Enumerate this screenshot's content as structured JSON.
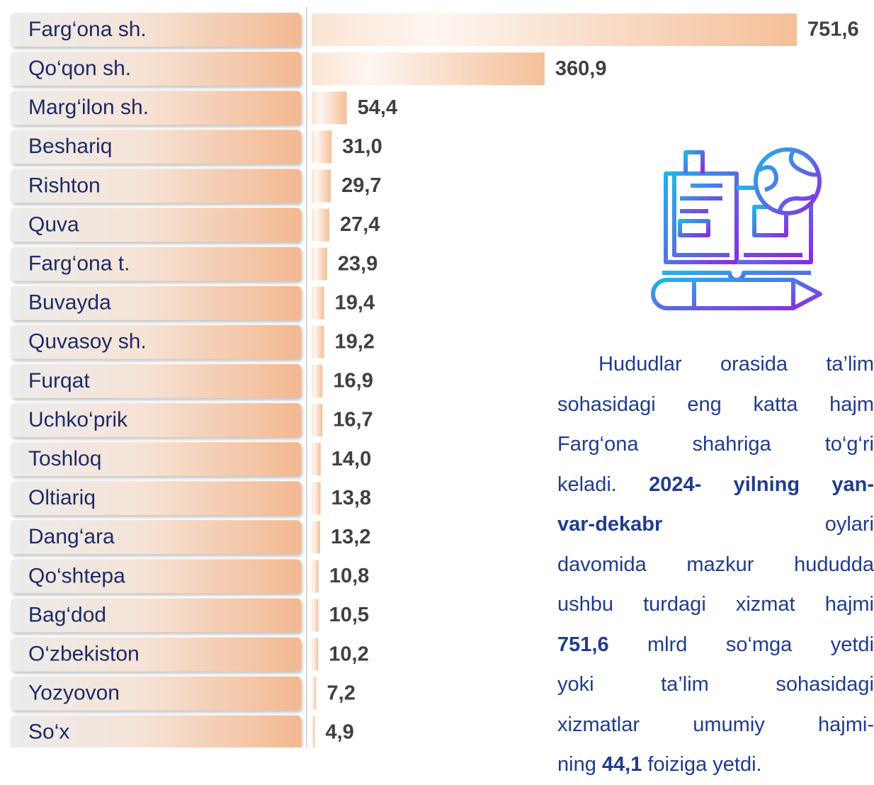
{
  "chart_data": {
    "type": "bar",
    "categories": [
      "Farg‘ona sh.",
      "Qo‘qon sh.",
      "Marg‘ilon sh.",
      "Beshariq",
      "Rishton",
      "Quva",
      "Farg‘ona t.",
      "Buvayda",
      "Quvasoy sh.",
      "Furqat",
      "Uchko‘prik",
      "Toshloq",
      "Oltiariq",
      "Dang‘ara",
      "Qo‘shtepa",
      "Bag‘dod",
      "O‘zbekiston",
      "Yozyovon",
      "So‘x"
    ],
    "values": [
      751.6,
      360.9,
      54.4,
      31.0,
      29.7,
      27.4,
      23.9,
      19.4,
      19.2,
      16.9,
      16.7,
      14.0,
      13.8,
      13.2,
      10.8,
      10.5,
      10.2,
      7.2,
      4.9
    ],
    "value_labels": [
      "751,6",
      "360,9",
      "54,4",
      "31,0",
      "29,7",
      "27,4",
      "23,9",
      "19,4",
      "19,2",
      "16,9",
      "16,7",
      "14,0",
      "13,8",
      "13,2",
      "10,8",
      "10,5",
      "10,2",
      "7,2",
      "4,9"
    ],
    "color": "#f5bf98"
  },
  "text": {
    "lines": [
      [
        {
          "text": "Hududlar orasida ta’lim",
          "bold": false
        }
      ],
      [
        {
          "text": "sohasidagi eng katta hajm",
          "bold": false
        }
      ],
      [
        {
          "text": "Farg‘ona shahriga to‘g‘ri",
          "bold": false
        }
      ],
      [
        {
          "text": "keladi. ",
          "bold": false
        },
        {
          "text": "2024- yilning yan-",
          "bold": true
        }
      ],
      [
        {
          "text": "var-dekabr",
          "bold": true
        },
        {
          "text": " oylari",
          "bold": false
        }
      ],
      [
        {
          "text": "davomida mazkur hududda",
          "bold": false
        }
      ],
      [
        {
          "text": "ushbu turdagi xizmat hajmi",
          "bold": false
        }
      ],
      [
        {
          "text": "751,6",
          "bold": true
        },
        {
          "text": " mlrd so‘mga yetdi",
          "bold": false
        }
      ],
      [
        {
          "text": "yoki ta’lim sohasidagi",
          "bold": false
        }
      ],
      [
        {
          "text": "xizmatlar umumiy hajmi-",
          "bold": false
        }
      ],
      [
        {
          "text": "ning ",
          "bold": false
        },
        {
          "text": "44,1",
          "bold": true
        },
        {
          "text": " foiziga yetdi.",
          "bold": false
        }
      ]
    ]
  }
}
